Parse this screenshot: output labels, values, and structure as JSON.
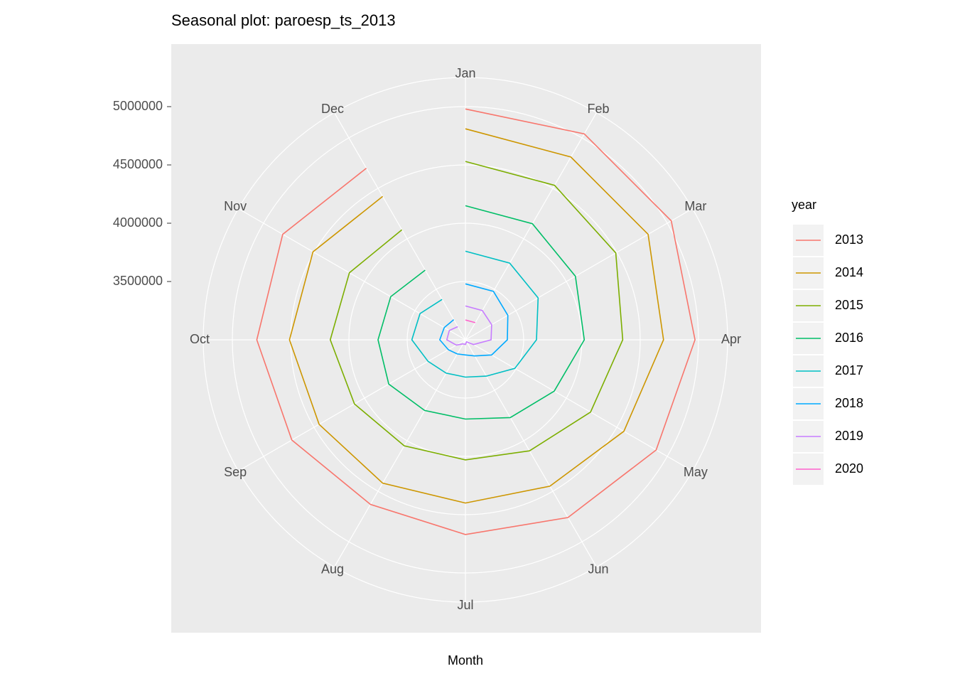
{
  "chart_data": {
    "type": "polar_line",
    "title": "Seasonal plot: paroesp_ts_2013",
    "x_label": "Month",
    "legend_title": "year",
    "categories": [
      "Jan",
      "Feb",
      "Mar",
      "Apr",
      "May",
      "Jun",
      "Jul",
      "Aug",
      "Sep",
      "Oct",
      "Nov",
      "Dec"
    ],
    "ylim": [
      3000000,
      5250000
    ],
    "yticks": [
      3500000,
      4000000,
      4500000,
      5000000
    ],
    "grid": true,
    "legend": "right",
    "series": [
      {
        "name": "2013",
        "color": "#F8766D",
        "values": [
          4980000,
          5040000,
          5040000,
          4970000,
          4890000,
          4760000,
          4670000,
          4630000,
          4720000,
          4790000,
          4810000,
          4700000
        ]
      },
      {
        "name": "2014",
        "color": "#CD9600",
        "values": [
          4810000,
          4810000,
          4810000,
          4700000,
          4570000,
          4450000,
          4400000,
          4420000,
          4450000,
          4510000,
          4510000,
          4420000
        ]
      },
      {
        "name": "2015",
        "color": "#7CAE00",
        "values": [
          4530000,
          4530000,
          4490000,
          4350000,
          4240000,
          4100000,
          4030000,
          4050000,
          4100000,
          4160000,
          4150000,
          4090000
        ]
      },
      {
        "name": "2016",
        "color": "#00BE67",
        "values": [
          4150000,
          4150000,
          4090000,
          4020000,
          3880000,
          3770000,
          3680000,
          3700000,
          3760000,
          3750000,
          3740000,
          3690000
        ]
      },
      {
        "name": "2017",
        "color": "#00BFC4",
        "values": [
          3760000,
          3760000,
          3720000,
          3610000,
          3490000,
          3360000,
          3320000,
          3330000,
          3370000,
          3460000,
          3450000,
          3400000
        ]
      },
      {
        "name": "2018",
        "color": "#00A9FF",
        "values": [
          3480000,
          3480000,
          3420000,
          3360000,
          3260000,
          3160000,
          3130000,
          3140000,
          3170000,
          3220000,
          3210000,
          3200000
        ]
      },
      {
        "name": "2019",
        "color": "#C77CFF",
        "values": [
          3290000,
          3290000,
          3260000,
          3220000,
          3080000,
          3020000,
          3040000,
          3040000,
          3090000,
          3160000,
          3160000,
          3130000
        ]
      },
      {
        "name": "2020",
        "color": "#FF61CC",
        "values": [
          3170000,
          3170000,
          null,
          null,
          null,
          null,
          null,
          null,
          null,
          null,
          null,
          null
        ]
      }
    ]
  }
}
